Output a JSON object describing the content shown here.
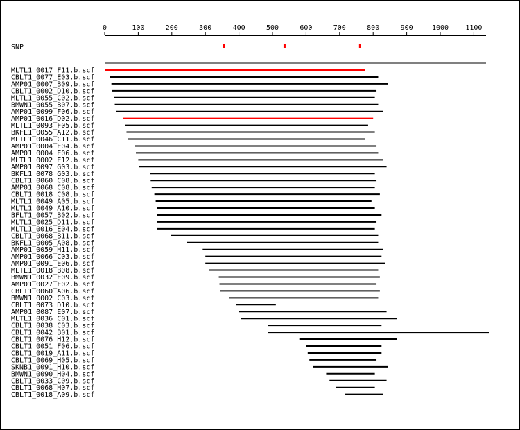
{
  "axis": {
    "ticks": [
      0,
      100,
      200,
      300,
      400,
      500,
      600,
      700,
      800,
      900,
      1000,
      1100
    ],
    "range": [
      0,
      1140
    ]
  },
  "snp": {
    "label": "SNP",
    "positions": [
      355,
      535,
      760
    ],
    "color": "#ff0000"
  },
  "colors": {
    "normal": "#000000",
    "highlight": "#ff0000"
  },
  "reads": [
    {
      "name": "MLTL1_0017_F11.b.scf",
      "start": 0,
      "end": 775,
      "highlight": true
    },
    {
      "name": "CBLT1_0077_E03.b.scf",
      "start": 15,
      "end": 815
    },
    {
      "name": "AMP01_0007_B09.b.scf",
      "start": 20,
      "end": 845
    },
    {
      "name": "CBLT1_0002_D10.b.scf",
      "start": 22,
      "end": 810
    },
    {
      "name": "MLTL1_0055_C02.b.scf",
      "start": 28,
      "end": 805
    },
    {
      "name": "BMWN1_0055_B07.b.scf",
      "start": 30,
      "end": 815
    },
    {
      "name": "AMP01_0099_F06.b.scf",
      "start": 35,
      "end": 830
    },
    {
      "name": "AMP01_0016_D02.b.scf",
      "start": 55,
      "end": 800,
      "highlight": true
    },
    {
      "name": "MLTL1_0093_F05.b.scf",
      "start": 60,
      "end": 785
    },
    {
      "name": "BKFL1_0055_A12.b.scf",
      "start": 65,
      "end": 805
    },
    {
      "name": "MLTL1_0046_C11.b.scf",
      "start": 70,
      "end": 775
    },
    {
      "name": "AMP01_0004_E04.b.scf",
      "start": 90,
      "end": 810
    },
    {
      "name": "AMP01_0004_E06.b.scf",
      "start": 93,
      "end": 815
    },
    {
      "name": "MLTL1_0002_E12.b.scf",
      "start": 100,
      "end": 830
    },
    {
      "name": "AMP01_0097_G03.b.scf",
      "start": 103,
      "end": 840
    },
    {
      "name": "BKFL1_0078_G03.b.scf",
      "start": 135,
      "end": 805
    },
    {
      "name": "CBLT1_0060_C08.b.scf",
      "start": 137,
      "end": 810
    },
    {
      "name": "AMP01_0068_C08.b.scf",
      "start": 140,
      "end": 805
    },
    {
      "name": "CBLT1_0018_C08.b.scf",
      "start": 148,
      "end": 820
    },
    {
      "name": "MLTL1_0049_A05.b.scf",
      "start": 152,
      "end": 795
    },
    {
      "name": "MLTL1_0049_A10.b.scf",
      "start": 155,
      "end": 805
    },
    {
      "name": "BFLT1_0057_B02.b.scf",
      "start": 155,
      "end": 825
    },
    {
      "name": "MLTL1_0025_D11.b.scf",
      "start": 157,
      "end": 810
    },
    {
      "name": "MLTL1_0016_E04.b.scf",
      "start": 157,
      "end": 805
    },
    {
      "name": "CBLT1_0068_B11.b.scf",
      "start": 198,
      "end": 815
    },
    {
      "name": "BKFL1_0005_A08.b.scf",
      "start": 245,
      "end": 815
    },
    {
      "name": "AMP01_0059_H11.b.scf",
      "start": 292,
      "end": 830
    },
    {
      "name": "AMP01_0066_C03.b.scf",
      "start": 300,
      "end": 825
    },
    {
      "name": "AMP01_0091_E06.b.scf",
      "start": 300,
      "end": 835
    },
    {
      "name": "MLTL1_0018_B08.b.scf",
      "start": 310,
      "end": 815
    },
    {
      "name": "BMWN1_0032_E09.b.scf",
      "start": 340,
      "end": 820
    },
    {
      "name": "AMP01_0027_F02.b.scf",
      "start": 342,
      "end": 810
    },
    {
      "name": "CBLT1_0060_A06.b.scf",
      "start": 345,
      "end": 820
    },
    {
      "name": "BMWN1_0002_C03.b.scf",
      "start": 370,
      "end": 815
    },
    {
      "name": "CBLT1_0073_D10.b.scf",
      "start": 392,
      "end": 510
    },
    {
      "name": "AMP01_0087_E07.b.scf",
      "start": 400,
      "end": 840
    },
    {
      "name": "MLTL1_0036_C01.b.scf",
      "start": 405,
      "end": 870
    },
    {
      "name": "CBLT1_0038_C03.b.scf",
      "start": 487,
      "end": 825
    },
    {
      "name": "CBLT1_0042_B01.b.scf",
      "start": 487,
      "end": 1145
    },
    {
      "name": "CBLT1_0076_H12.b.scf",
      "start": 580,
      "end": 870
    },
    {
      "name": "CBLT1_0051_F06.b.scf",
      "start": 600,
      "end": 825
    },
    {
      "name": "CBLT1_0019_A11.b.scf",
      "start": 605,
      "end": 825
    },
    {
      "name": "CBLT1_0069_H05.b.scf",
      "start": 610,
      "end": 810
    },
    {
      "name": "SKNB1_0091_H10.b.scf",
      "start": 620,
      "end": 845
    },
    {
      "name": "BMWN1_0090_H04.b.scf",
      "start": 660,
      "end": 805
    },
    {
      "name": "CBLT1_0033_C09.b.scf",
      "start": 670,
      "end": 840
    },
    {
      "name": "CBLT1_0068_H07.b.scf",
      "start": 690,
      "end": 805
    },
    {
      "name": "CBLT1_0018_A09.b.scf",
      "start": 717,
      "end": 830
    }
  ]
}
